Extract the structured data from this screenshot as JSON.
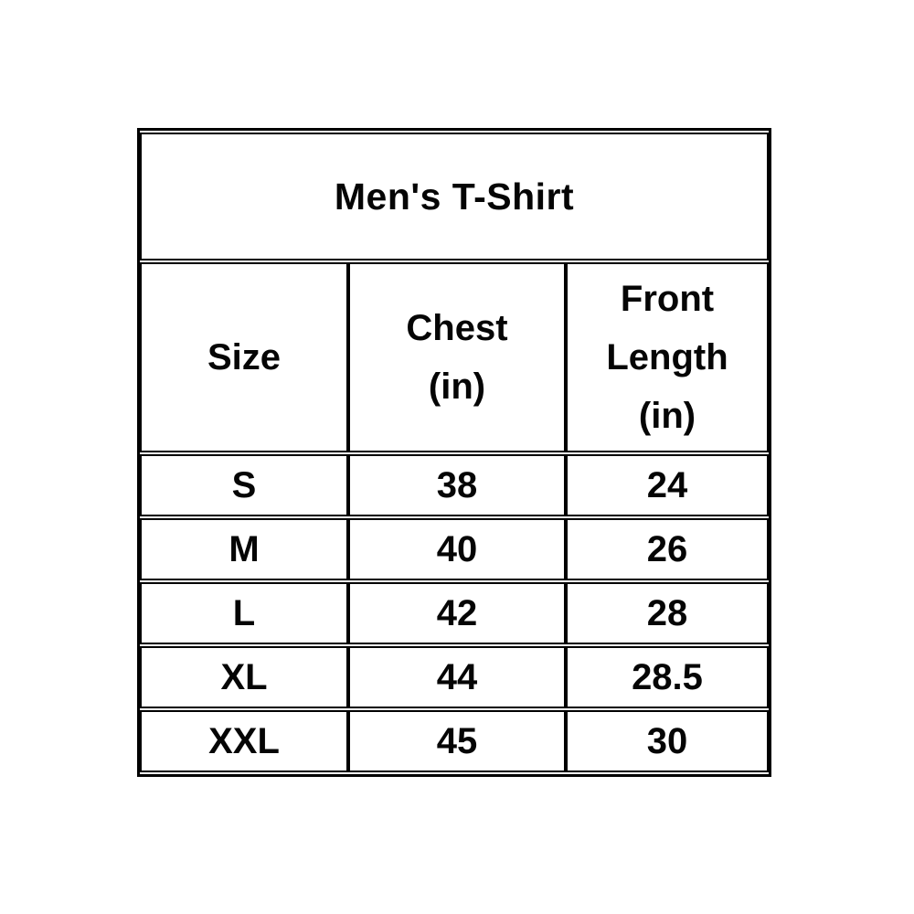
{
  "table": {
    "title": "Men's T-Shirt",
    "columns": [
      {
        "label": "Size",
        "lines": [
          "Size"
        ]
      },
      {
        "label": "Chest (in)",
        "lines": [
          "Chest",
          "(in)"
        ]
      },
      {
        "label": "Front Length (in)",
        "lines": [
          "Front",
          "Length",
          "(in)"
        ]
      }
    ],
    "rows": [
      {
        "size": "S",
        "chest": "38",
        "front_length": "24"
      },
      {
        "size": "M",
        "chest": "40",
        "front_length": "26"
      },
      {
        "size": "L",
        "chest": "42",
        "front_length": "28"
      },
      {
        "size": "XL",
        "chest": "44",
        "front_length": "28.5"
      },
      {
        "size": "XXL",
        "chest": "45",
        "front_length": "30"
      }
    ],
    "colors": {
      "border": "#000000",
      "text": "#050505",
      "background": "#ffffff"
    }
  },
  "chart_data": {
    "type": "table",
    "title": "Men's T-Shirt",
    "columns": [
      "Size",
      "Chest (in)",
      "Front Length (in)"
    ],
    "rows": [
      [
        "S",
        38,
        24
      ],
      [
        "M",
        40,
        26
      ],
      [
        "L",
        42,
        28
      ],
      [
        "XL",
        44,
        28.5
      ],
      [
        "XXL",
        45,
        30
      ]
    ]
  }
}
